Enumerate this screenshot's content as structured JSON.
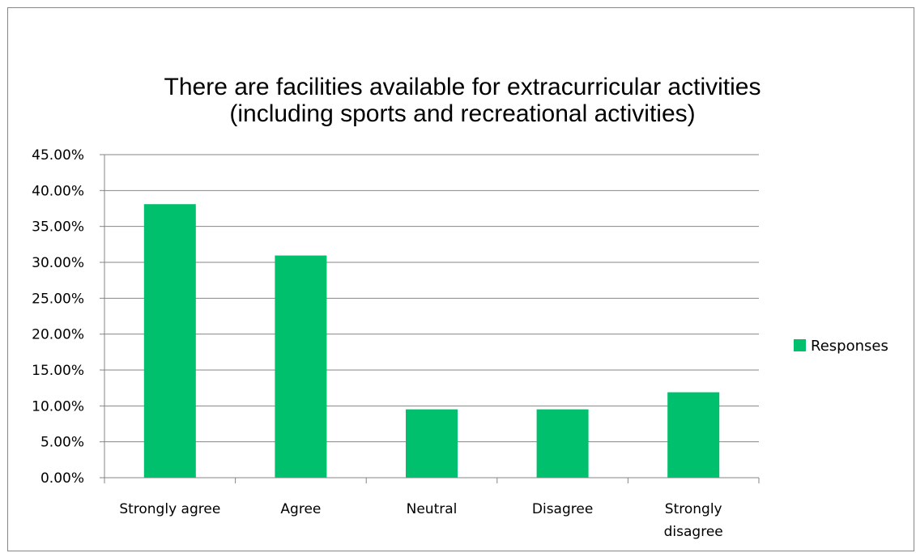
{
  "chart_data": {
    "type": "bar",
    "title": [
      "There are facilities available for extracurricular activities",
      "(including sports and recreational activities)"
    ],
    "categories": [
      [
        "Strongly agree"
      ],
      [
        "Agree"
      ],
      [
        "Neutral"
      ],
      [
        "Disagree"
      ],
      [
        "Strongly",
        "disagree"
      ]
    ],
    "series": [
      {
        "name": "Responses",
        "values": [
          38.1,
          30.95,
          9.52,
          9.52,
          11.9
        ],
        "color": "#00c06e"
      }
    ],
    "ylim": [
      0,
      45
    ],
    "yticks": [
      "0.00%",
      "5.00%",
      "10.00%",
      "15.00%",
      "20.00%",
      "25.00%",
      "30.00%",
      "35.00%",
      "40.00%",
      "45.00%"
    ],
    "grid": true,
    "legend": "right"
  }
}
